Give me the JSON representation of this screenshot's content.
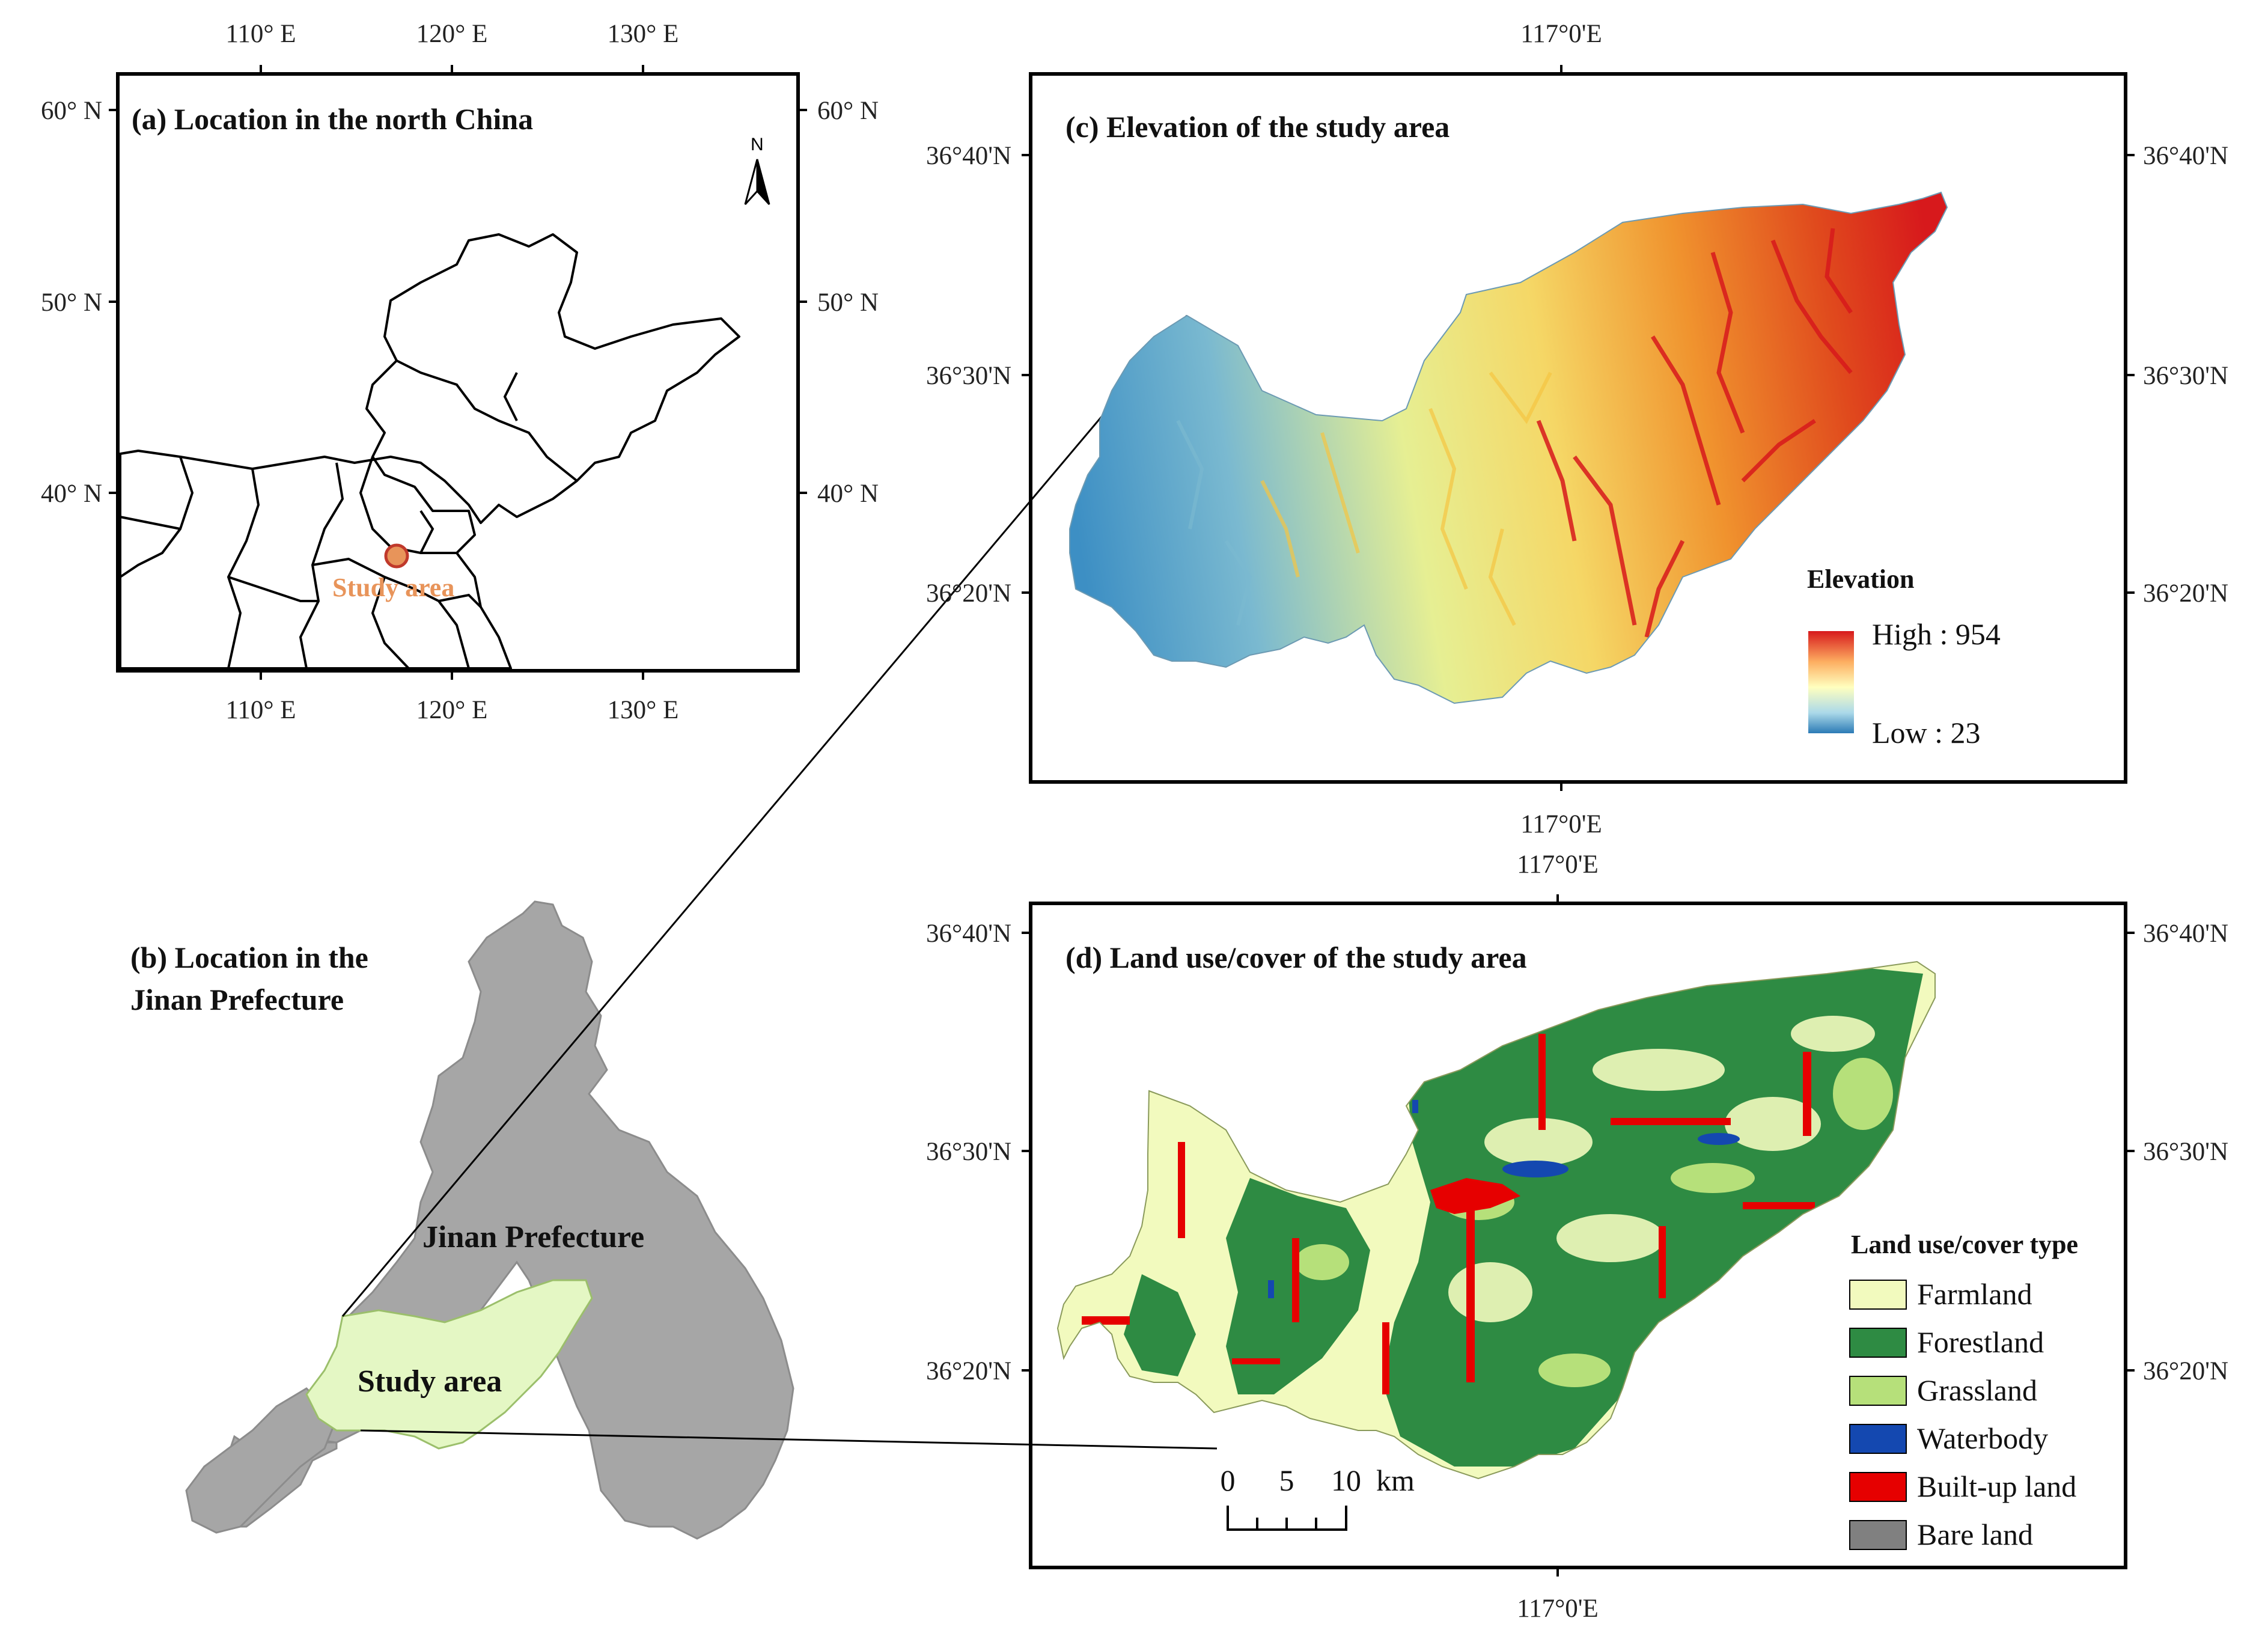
{
  "panel_a": {
    "title": "(a) Location in the north China",
    "lon_labels": [
      "110° E",
      "120° E",
      "130° E"
    ],
    "lat_labels": [
      "60° N",
      "50° N",
      "40° N"
    ],
    "north_letter": "N",
    "marker_label": "Study area",
    "marker_color": "#e8945a"
  },
  "panel_b": {
    "title_line1": "(b) Location in the",
    "title_line2": "Jinan Prefecture",
    "prefecture_label": "Jinan Prefecture",
    "study_label": "Study area",
    "prefecture_color": "#a6a6a6",
    "study_color": "#e4f7c4"
  },
  "panel_c": {
    "title": "(c) Elevation of the study area",
    "lon_label": "117°0'E",
    "lat_labels": [
      "36°40'N",
      "36°30'N",
      "36°20'N"
    ],
    "legend_title": "Elevation",
    "legend_high": "High : 954",
    "legend_low": "Low : 23",
    "ramp_colors": [
      "#d7191c",
      "#fdae61",
      "#ffffbf",
      "#abd9e9",
      "#2c7bb6"
    ]
  },
  "panel_d": {
    "title": "(d) Land use/cover of the study area",
    "lon_label": "117°0'E",
    "lat_labels": [
      "36°40'N",
      "36°30'N",
      "36°20'N"
    ],
    "legend_title": "Land use/cover type",
    "legend_items": [
      {
        "label": "Farmland",
        "color": "#f2fabe"
      },
      {
        "label": "Forestland",
        "color": "#2e8b43"
      },
      {
        "label": "Grassland",
        "color": "#b6e07a"
      },
      {
        "label": "Waterbody",
        "color": "#1448b0"
      },
      {
        "label": "Built-up land",
        "color": "#e60000"
      },
      {
        "label": "Bare land",
        "color": "#808080"
      }
    ],
    "scale_numbers": [
      "0",
      "5",
      "10"
    ],
    "scale_unit": "km"
  }
}
